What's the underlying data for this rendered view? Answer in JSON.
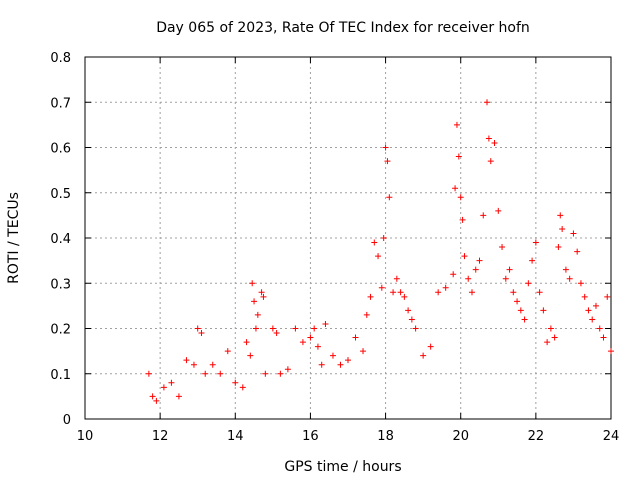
{
  "chart_data": {
    "type": "scatter",
    "title": "Day 065 of 2023, Rate Of TEC Index for receiver hofn",
    "xlabel": "GPS time / hours",
    "ylabel": "ROTI / TECUs",
    "xlim": [
      10,
      24
    ],
    "ylim": [
      0,
      0.8
    ],
    "xticks": [
      "10",
      "12",
      "14",
      "16",
      "18",
      "20",
      "22",
      "24"
    ],
    "yticks": [
      "0",
      "0.1",
      "0.2",
      "0.3",
      "0.4",
      "0.5",
      "0.6",
      "0.7",
      "0.8"
    ],
    "grid": true,
    "marker": "+",
    "marker_color": "#ff0000",
    "series": [
      {
        "x": [
          11.7,
          11.8,
          11.9,
          12.1,
          12.3,
          12.5,
          12.7,
          12.9,
          13.0,
          13.1,
          13.2,
          13.4,
          13.6,
          13.8,
          14.0,
          14.2,
          14.3,
          14.4,
          14.45,
          14.5,
          14.55,
          14.6,
          14.7,
          14.75,
          14.8,
          15.0,
          15.1,
          15.2,
          15.4,
          15.6,
          15.8,
          16.0,
          16.1,
          16.2,
          16.3,
          16.4,
          16.6,
          16.8,
          17.0,
          17.2,
          17.4,
          17.5,
          17.6,
          17.7,
          17.8,
          17.9,
          17.95,
          18.0,
          18.05,
          18.1,
          18.2,
          18.3,
          18.4,
          18.5,
          18.6,
          18.7,
          18.8,
          19.0,
          19.2,
          19.4,
          19.6,
          19.8,
          19.85,
          19.9,
          19.95,
          20.0,
          20.05,
          20.1,
          20.2,
          20.3,
          20.4,
          20.5,
          20.6,
          20.7,
          20.75,
          20.8,
          20.9,
          21.0,
          21.1,
          21.2,
          21.3,
          21.4,
          21.5,
          21.6,
          21.7,
          21.8,
          21.9,
          22.0,
          22.1,
          22.2,
          22.3,
          22.4,
          22.5,
          22.6,
          22.65,
          22.7,
          22.8,
          22.9,
          23.0,
          23.1,
          23.2,
          23.3,
          23.4,
          23.5,
          23.6,
          23.7,
          23.8,
          23.9,
          24.0
        ],
        "y": [
          0.1,
          0.05,
          0.04,
          0.07,
          0.08,
          0.05,
          0.13,
          0.12,
          0.2,
          0.19,
          0.1,
          0.12,
          0.1,
          0.15,
          0.08,
          0.07,
          0.17,
          0.14,
          0.3,
          0.26,
          0.2,
          0.23,
          0.28,
          0.27,
          0.1,
          0.2,
          0.19,
          0.1,
          0.11,
          0.2,
          0.17,
          0.18,
          0.2,
          0.16,
          0.12,
          0.21,
          0.14,
          0.12,
          0.13,
          0.18,
          0.15,
          0.23,
          0.27,
          0.39,
          0.36,
          0.29,
          0.4,
          0.6,
          0.57,
          0.49,
          0.28,
          0.31,
          0.28,
          0.27,
          0.24,
          0.22,
          0.2,
          0.14,
          0.16,
          0.28,
          0.29,
          0.32,
          0.51,
          0.65,
          0.58,
          0.49,
          0.44,
          0.36,
          0.31,
          0.28,
          0.33,
          0.35,
          0.45,
          0.7,
          0.62,
          0.57,
          0.61,
          0.46,
          0.38,
          0.31,
          0.33,
          0.28,
          0.26,
          0.24,
          0.22,
          0.3,
          0.35,
          0.39,
          0.28,
          0.24,
          0.17,
          0.2,
          0.18,
          0.38,
          0.45,
          0.42,
          0.33,
          0.31,
          0.41,
          0.37,
          0.3,
          0.27,
          0.24,
          0.22,
          0.25,
          0.2,
          0.18,
          0.27,
          0.15
        ]
      }
    ]
  }
}
